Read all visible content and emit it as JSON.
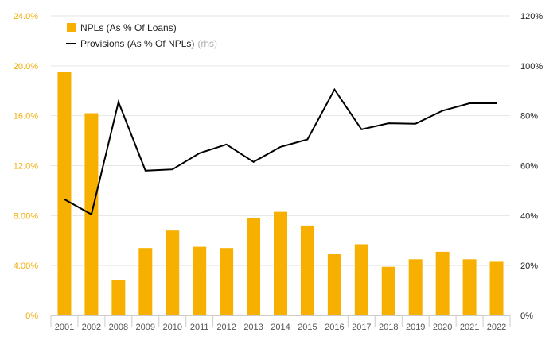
{
  "chart_data": {
    "type": "bar+line",
    "categories": [
      "2001",
      "2002",
      "2008",
      "2009",
      "2010",
      "2011",
      "2012",
      "2013",
      "2014",
      "2015",
      "2016",
      "2017",
      "2018",
      "2019",
      "2020",
      "2021",
      "2022"
    ],
    "series": [
      {
        "name": "NPLs (As % Of Loans)",
        "type": "bar",
        "axis": "left",
        "color": "#f7b000",
        "values": [
          19.5,
          16.2,
          2.8,
          5.4,
          6.8,
          5.5,
          5.4,
          7.8,
          8.3,
          7.2,
          4.9,
          5.7,
          3.9,
          4.5,
          5.1,
          4.5,
          4.3
        ]
      },
      {
        "name": "Provisions (As % Of NPLs)",
        "note": "(rhs)",
        "type": "line",
        "axis": "right",
        "color": "#000000",
        "values": [
          46.5,
          40.5,
          85.5,
          58.0,
          58.5,
          65.0,
          68.5,
          61.5,
          67.5,
          70.5,
          90.5,
          74.5,
          77.0,
          76.8,
          82.0,
          85.0,
          85.0
        ]
      }
    ],
    "y_left": {
      "ticks": [
        "0%",
        "4.00%",
        "8.00%",
        "12.0%",
        "16.0%",
        "20.0%",
        "24.0%"
      ],
      "ylim": [
        0,
        24
      ],
      "color": "#f3aa00"
    },
    "y_right": {
      "ticks": [
        "0%",
        "20%",
        "40%",
        "60%",
        "80%",
        "100%",
        "120%"
      ],
      "ylim": [
        0,
        120
      ]
    },
    "legend": {
      "position": "top-left",
      "items": [
        {
          "label": "NPLs (As % Of Loans)",
          "marker": "square",
          "color": "#f7b000"
        },
        {
          "label": "Provisions (As % Of NPLs)",
          "note": "(rhs)",
          "marker": "line",
          "color": "#000000"
        }
      ]
    },
    "grid": true
  }
}
